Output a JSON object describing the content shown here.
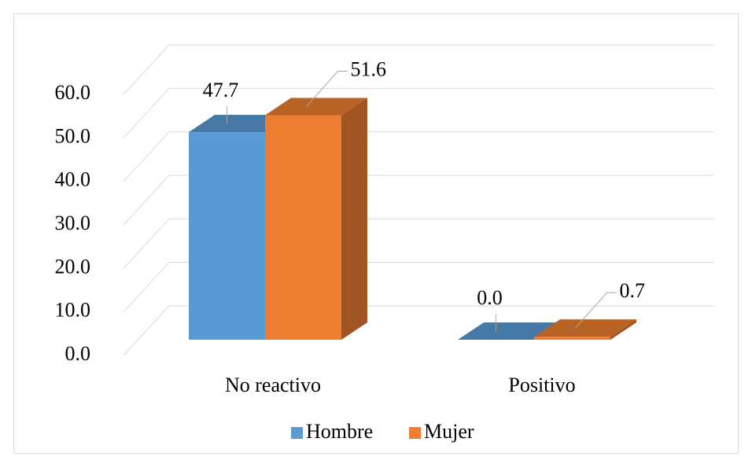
{
  "chart_data": {
    "type": "bar3d",
    "categories": [
      "No reactivo",
      "Positivo"
    ],
    "series": [
      {
        "name": "Hombre",
        "color": "#5b9bd5",
        "values": [
          47.7,
          0.0
        ],
        "value_labels": [
          "47.7",
          "0.0"
        ]
      },
      {
        "name": "Mujer",
        "color": "#ed7d31",
        "values": [
          51.6,
          0.7
        ],
        "value_labels": [
          "51.6",
          "0.7"
        ]
      }
    ],
    "ylim": [
      0,
      60
    ],
    "yticks": [
      {
        "value": 0,
        "label": "0.0"
      },
      {
        "value": 10,
        "label": "10.0"
      },
      {
        "value": 20,
        "label": "20.0"
      },
      {
        "value": 30,
        "label": "30.0"
      },
      {
        "value": 40,
        "label": "40.0"
      },
      {
        "value": 50,
        "label": "50.0"
      },
      {
        "value": 60,
        "label": "60.0"
      }
    ],
    "grid": true,
    "legend": "bottom"
  }
}
